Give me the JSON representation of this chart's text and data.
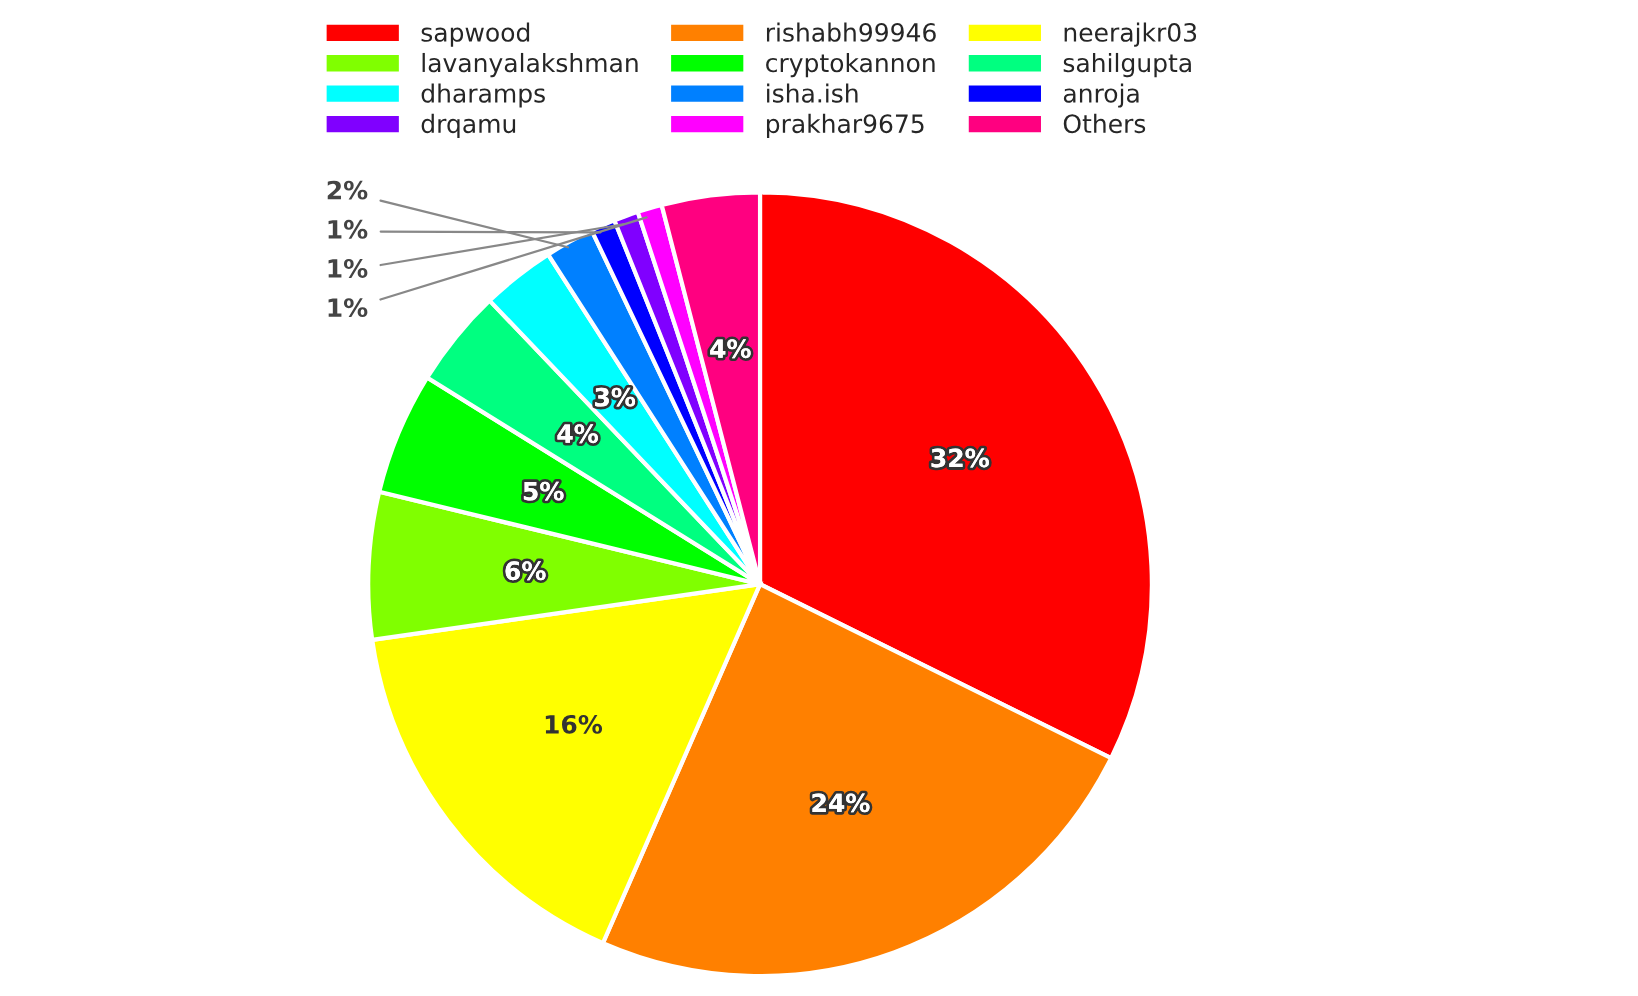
{
  "chart_data": {
    "type": "pie",
    "categories": [
      "sapwood",
      "rishabh99946",
      "neerajkr03",
      "lavanyalakshman",
      "cryptokannon",
      "sahilgupta",
      "dharamps",
      "isha.ish",
      "anroja",
      "drqamu",
      "prakhar9675",
      "Others"
    ],
    "values": [
      32,
      24,
      16,
      6,
      5,
      4,
      3,
      2,
      1,
      1,
      1,
      4
    ],
    "value_labels": [
      "32%",
      "24%",
      "16%",
      "6%",
      "5%",
      "4%",
      "3%",
      "2%",
      "1%",
      "1%",
      "1%",
      "4%"
    ],
    "colors": [
      "#ff0000",
      "#ff8000",
      "#ffff00",
      "#80ff00",
      "#00ff00",
      "#00ff80",
      "#00ffff",
      "#0080ff",
      "#0000ff",
      "#8000ff",
      "#ff00ff",
      "#ff0080"
    ],
    "legend": "top"
  }
}
